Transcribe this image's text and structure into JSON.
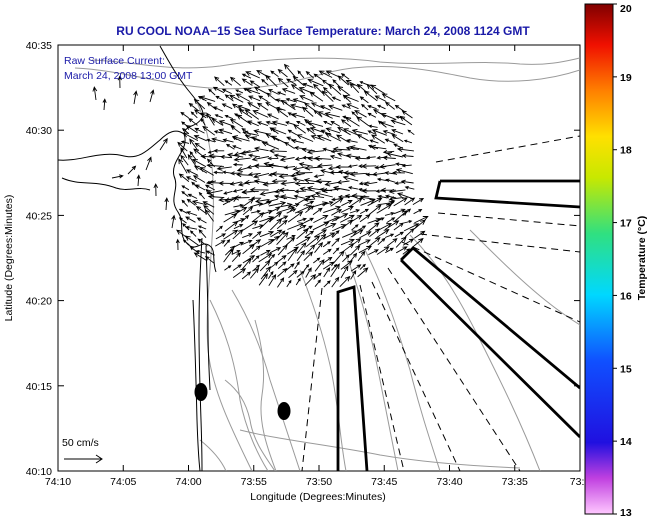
{
  "chart_data": {
    "type": "vector-map",
    "title": "RU COOL  NOAA−15  Sea Surface Temperature:  March 24, 2008 1124 GMT",
    "inset_label": "Raw Surface Current:",
    "inset_date": "March 24, 2008 13:00 GMT",
    "xlabel": "Longitude (Degrees:Minutes)",
    "ylabel": "Latitude (Degrees:Minutes)",
    "x_ticks": [
      "74:10",
      "74:05",
      "74:00",
      "73:55",
      "73:50",
      "73:45",
      "73:40",
      "73:35",
      "73:3"
    ],
    "y_ticks": [
      "40:35",
      "40:30",
      "40:25",
      "40:20",
      "40:15",
      "40:10"
    ],
    "scale_label": "50 cm/s",
    "colorbar": {
      "label": "Temperature (°C)",
      "min": 13,
      "max": 20,
      "ticks": [
        "13",
        "14",
        "15",
        "16",
        "17",
        "18",
        "19",
        "20"
      ]
    }
  },
  "colors": {
    "title": "#1a1aa8",
    "coast": "#000000",
    "bathymetry": "#9a9a9a",
    "vectors": "#000000"
  }
}
